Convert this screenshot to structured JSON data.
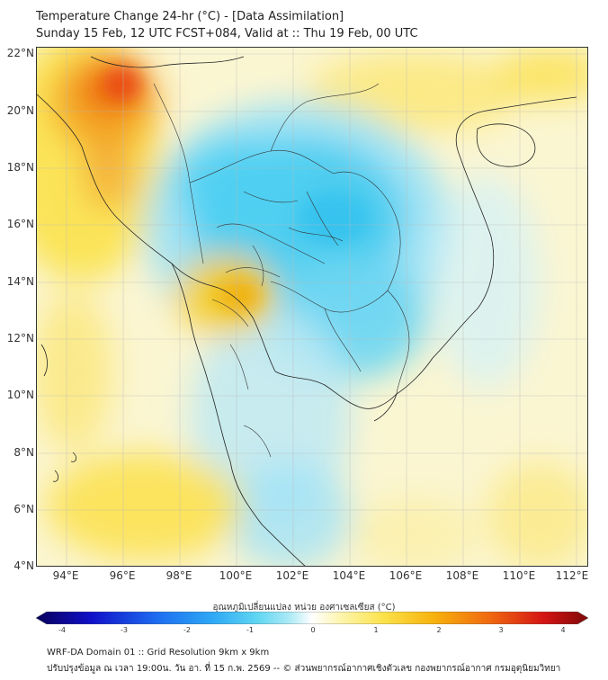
{
  "title_line1": "Temperature Change 24-hr (°C) - [Data Assimilation]",
  "title_line2": "Sunday 15 Feb, 12 UTC FCST+084, Valid at :: Thu 19 Feb, 00 UTC",
  "lat_labels": [
    "22°N",
    "20°N",
    "18°N",
    "16°N",
    "14°N",
    "12°N",
    "10°N",
    "8°N",
    "6°N",
    "4°N"
  ],
  "lon_labels": [
    "94°E",
    "96°E",
    "98°E",
    "100°E",
    "102°E",
    "104°E",
    "106°E",
    "108°E",
    "110°E",
    "112°E"
  ],
  "colorbar": {
    "label": "อุณหภูมิเปลี่ยนแปลง หน่วย องศาเซลเซียส (°C)",
    "ticks": [
      "-4",
      "-3",
      "-2",
      "-1",
      "0",
      "1",
      "2",
      "3",
      "4"
    ],
    "range": [
      -4,
      4
    ],
    "colors": [
      "#08005a",
      "#1010c8",
      "#1e6ef0",
      "#2ea8f5",
      "#5fd6f2",
      "#aeeaf6",
      "#ffffff",
      "#fdf5b0",
      "#fbe24a",
      "#f7b20c",
      "#f06a10",
      "#d41414",
      "#7e0808"
    ]
  },
  "footer_line1": "WRF-DA Domain 01 :: Grid Resolution 9km x 9km",
  "footer_line2": "ปรับปรุงข้อมูล ณ เวลา 19:00น. วัน อา. ที่ 15 ก.พ. 2569 -- © ส่วนพยากรณ์อากาศเชิงตัวเลข กองพยากรณ์อากาศ กรมอุตุนิยมวิทยา",
  "field_colors": {
    "cold": "#4fd0f2",
    "cool": "#a6e6f7",
    "warm": "#fbe36a",
    "hot": "#f06a10"
  }
}
